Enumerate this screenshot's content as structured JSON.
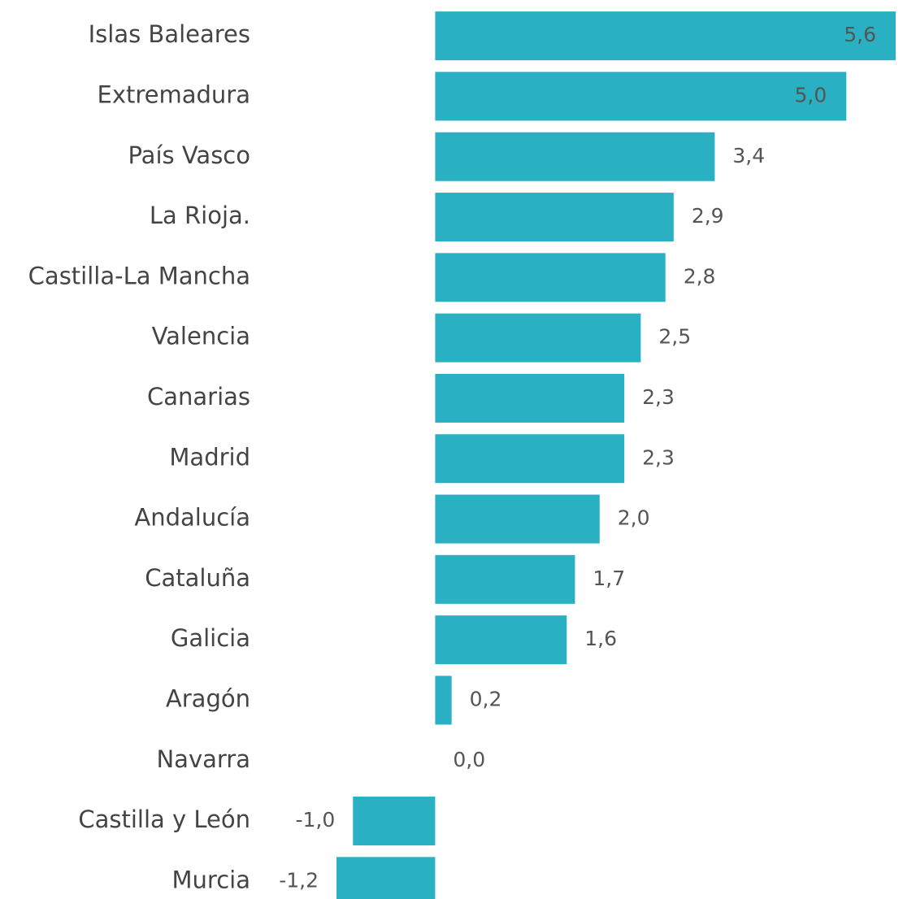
{
  "chart_data": {
    "type": "bar",
    "orientation": "horizontal",
    "categories": [
      "Islas Baleares",
      "Extremadura",
      "País Vasco",
      "La Rioja.",
      "Castilla-La Mancha",
      "Valencia",
      "Canarias",
      "Madrid",
      "Andalucía",
      "Cataluña",
      "Galicia",
      "Aragón",
      "Navarra",
      "Castilla y León",
      "Murcia"
    ],
    "values": [
      5.6,
      5.0,
      3.4,
      2.9,
      2.8,
      2.5,
      2.3,
      2.3,
      2.0,
      1.7,
      1.6,
      0.2,
      0.0,
      -1.0,
      -1.2
    ],
    "value_labels": [
      "5,6",
      "5,0",
      "3,4",
      "2,9",
      "2,8",
      "2,5",
      "2,3",
      "2,3",
      "2,0",
      "1,7",
      "1,6",
      "0,2",
      "0,0",
      "-1,0",
      "-1,2"
    ],
    "color": "#29b0c3"
  }
}
